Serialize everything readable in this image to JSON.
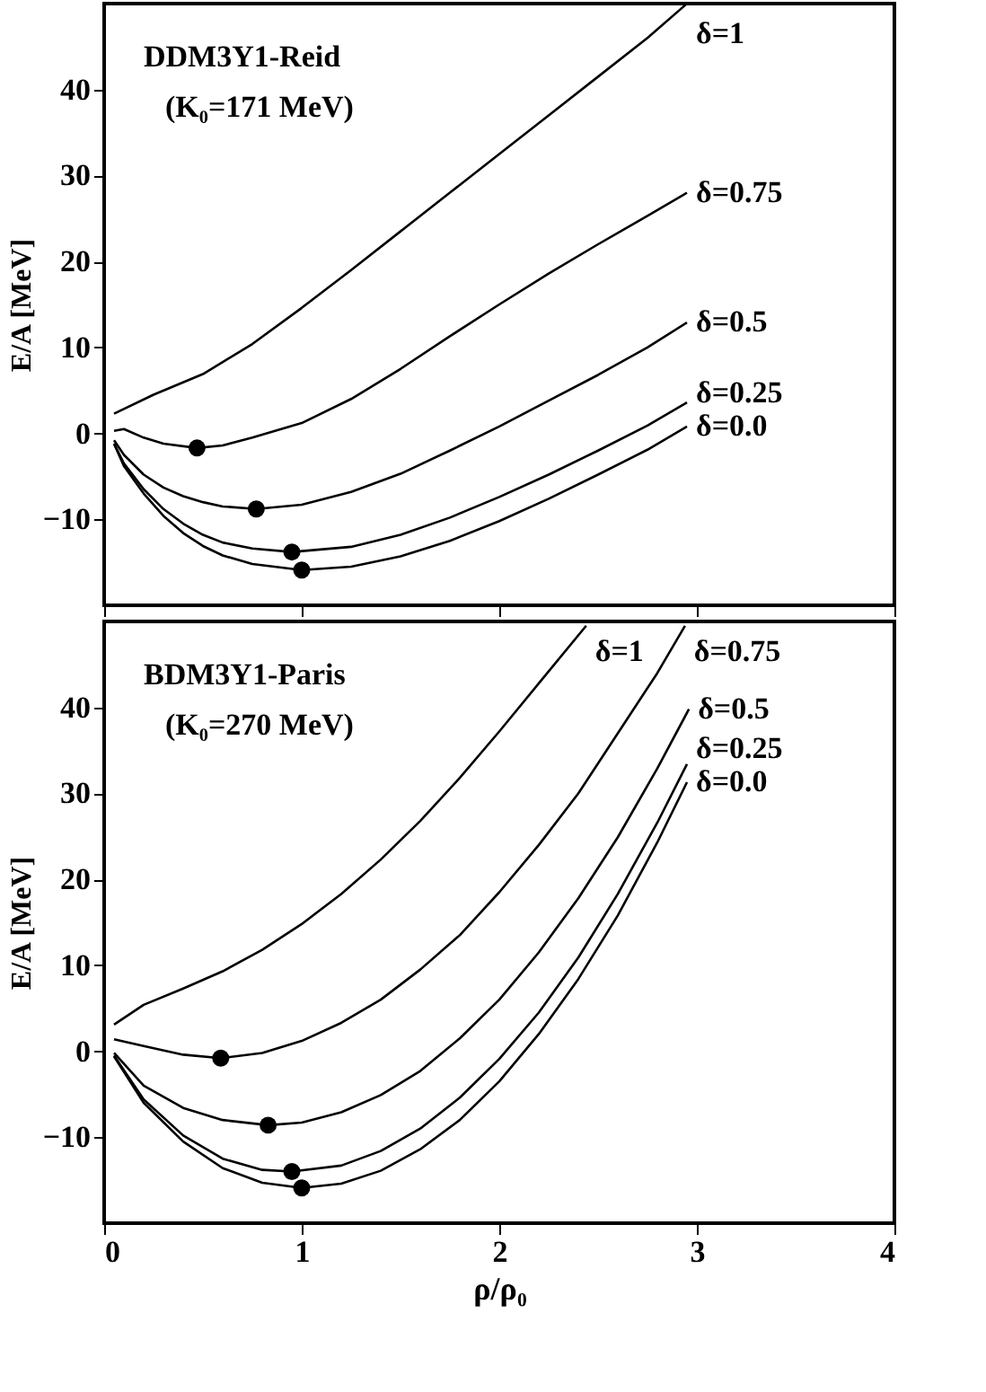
{
  "chart_data": [
    {
      "type": "line",
      "ylabel": "E/A [MeV]",
      "annotations": [
        "DDM3Y1-Reid",
        "(K₀=171 MeV)"
      ],
      "xlim": [
        0,
        4
      ],
      "xticks": [
        0,
        1,
        2,
        3,
        4
      ],
      "ylim": [
        -20,
        50
      ],
      "yticks": [
        -10,
        0,
        10,
        20,
        30,
        40
      ],
      "tick_labels": "y",
      "grid": false,
      "line_style": "solid",
      "marker": "none",
      "series": [
        {
          "name": "δ=1",
          "color": "#000000",
          "x": [
            0.05,
            0.25,
            0.5,
            0.75,
            1.0,
            1.25,
            1.5,
            1.75,
            2.0,
            2.25,
            2.5,
            2.75,
            2.95
          ],
          "values": [
            2.3,
            4.5,
            6.9,
            10.4,
            14.6,
            19,
            23.5,
            28,
            32.5,
            37,
            41.5,
            46,
            50
          ]
        },
        {
          "name": "δ=0.75",
          "color": "#000000",
          "x": [
            0.05,
            0.1,
            0.2,
            0.3,
            0.47,
            0.6,
            0.75,
            1.0,
            1.25,
            1.5,
            1.75,
            2.0,
            2.25,
            2.5,
            2.75,
            2.95
          ],
          "values": [
            0.3,
            0.5,
            -0.5,
            -1.2,
            -1.7,
            -1.4,
            -0.5,
            1.2,
            4.0,
            7.5,
            11.3,
            15,
            18.6,
            22,
            25.3,
            28
          ]
        },
        {
          "name": "δ=0.5",
          "color": "#000000",
          "x": [
            0.05,
            0.1,
            0.2,
            0.3,
            0.4,
            0.5,
            0.6,
            0.77,
            1.0,
            1.25,
            1.5,
            1.75,
            2.0,
            2.25,
            2.5,
            2.75,
            2.95
          ],
          "values": [
            -0.8,
            -2.5,
            -4.8,
            -6.3,
            -7.3,
            -8.0,
            -8.5,
            -8.8,
            -8.3,
            -6.8,
            -4.7,
            -2.0,
            0.8,
            3.8,
            6.8,
            10,
            12.9
          ]
        },
        {
          "name": "δ=0.25",
          "color": "#000000",
          "x": [
            0.05,
            0.1,
            0.2,
            0.3,
            0.4,
            0.5,
            0.6,
            0.75,
            0.95,
            1.25,
            1.5,
            1.75,
            2.0,
            2.25,
            2.5,
            2.75,
            2.95
          ],
          "values": [
            -1.2,
            -3.5,
            -6.5,
            -8.8,
            -10.5,
            -11.8,
            -12.7,
            -13.4,
            -13.8,
            -13.2,
            -11.8,
            -9.8,
            -7.4,
            -4.8,
            -2.0,
            0.9,
            3.6
          ]
        },
        {
          "name": "δ=0.0",
          "color": "#000000",
          "x": [
            0.05,
            0.1,
            0.2,
            0.3,
            0.4,
            0.5,
            0.6,
            0.75,
            1.0,
            1.25,
            1.5,
            1.75,
            2.0,
            2.25,
            2.5,
            2.75,
            2.95
          ],
          "values": [
            -1.2,
            -3.8,
            -7.0,
            -9.6,
            -11.6,
            -13.1,
            -14.2,
            -15.2,
            -15.9,
            -15.5,
            -14.3,
            -12.5,
            -10.2,
            -7.6,
            -4.8,
            -1.9,
            0.8
          ]
        },
        {
          "type": "scatter",
          "marker": "circle",
          "color": "#000000",
          "x": [
            0.47,
            0.77,
            0.95,
            1.0
          ],
          "values": [
            -1.7,
            -8.8,
            -13.8,
            -15.9
          ]
        }
      ]
    },
    {
      "type": "line",
      "xlabel": "ρ/ρ₀",
      "ylabel": "E/A [MeV]",
      "annotations": [
        "BDM3Y1-Paris",
        "(K₀=270 MeV)"
      ],
      "xlim": [
        0,
        4
      ],
      "xticks": [
        0,
        1,
        2,
        3,
        4
      ],
      "ylim": [
        -20,
        50
      ],
      "yticks": [
        -10,
        0,
        10,
        20,
        30,
        40
      ],
      "grid": false,
      "line_style": "solid",
      "marker": "none",
      "series": [
        {
          "name": "δ=1",
          "color": "#000000",
          "x": [
            0.05,
            0.2,
            0.4,
            0.6,
            0.8,
            1.0,
            1.2,
            1.4,
            1.6,
            1.8,
            2.0,
            2.2,
            2.44
          ],
          "values": [
            3.1,
            5.4,
            7.3,
            9.3,
            11.8,
            14.8,
            18.3,
            22.3,
            26.8,
            31.8,
            37.2,
            42.8,
            49.5
          ]
        },
        {
          "name": "δ=0.75",
          "color": "#000000",
          "x": [
            0.05,
            0.2,
            0.4,
            0.59,
            0.8,
            1.0,
            1.2,
            1.4,
            1.6,
            1.8,
            2.0,
            2.2,
            2.4,
            2.6,
            2.8,
            2.94
          ],
          "values": [
            1.4,
            0.6,
            -0.4,
            -0.8,
            -0.2,
            1.2,
            3.3,
            6,
            9.5,
            13.5,
            18.5,
            24,
            30,
            37,
            44,
            49.5
          ]
        },
        {
          "name": "δ=0.5",
          "color": "#000000",
          "x": [
            0.05,
            0.2,
            0.4,
            0.6,
            0.83,
            1.0,
            1.2,
            1.4,
            1.6,
            1.8,
            2.0,
            2.2,
            2.4,
            2.6,
            2.8,
            2.96
          ],
          "values": [
            -0.2,
            -4.0,
            -6.6,
            -8.0,
            -8.6,
            -8.3,
            -7.1,
            -5.1,
            -2.3,
            1.5,
            6.0,
            11.5,
            17.8,
            24.9,
            32.9,
            39.8
          ]
        },
        {
          "name": "δ=0.25",
          "color": "#000000",
          "x": [
            0.05,
            0.2,
            0.4,
            0.6,
            0.8,
            0.95,
            1.2,
            1.4,
            1.6,
            1.8,
            2.0,
            2.2,
            2.4,
            2.6,
            2.8,
            2.95
          ],
          "values": [
            -0.5,
            -5.6,
            -9.8,
            -12.5,
            -13.8,
            -14,
            -13.3,
            -11.6,
            -9,
            -5.4,
            -0.9,
            4.5,
            10.9,
            18.3,
            26.6,
            33.4
          ]
        },
        {
          "name": "δ=0.0",
          "color": "#000000",
          "x": [
            0.05,
            0.2,
            0.4,
            0.6,
            0.8,
            1.0,
            1.2,
            1.4,
            1.6,
            1.8,
            2.0,
            2.2,
            2.4,
            2.6,
            2.8,
            2.95
          ],
          "values": [
            -0.6,
            -6,
            -10.5,
            -13.6,
            -15.3,
            -15.9,
            -15.4,
            -13.9,
            -11.4,
            -8,
            -3.5,
            2,
            8.4,
            15.8,
            24.3,
            31.3
          ]
        },
        {
          "type": "scatter",
          "marker": "circle",
          "color": "#000000",
          "x": [
            0.59,
            0.83,
            0.95,
            1.0
          ],
          "values": [
            -0.8,
            -8.6,
            -14,
            -15.9
          ]
        }
      ]
    }
  ]
}
